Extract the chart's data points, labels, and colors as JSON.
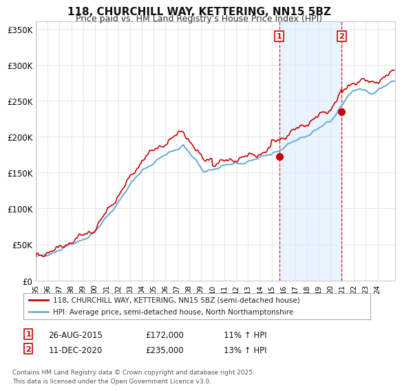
{
  "title": "118, CHURCHILL WAY, KETTERING, NN15 5BZ",
  "subtitle": "Price paid vs. HM Land Registry's House Price Index (HPI)",
  "ylim": [
    0,
    360000
  ],
  "yticks": [
    0,
    50000,
    100000,
    150000,
    200000,
    250000,
    300000,
    350000
  ],
  "ytick_labels": [
    "£0",
    "£50K",
    "£100K",
    "£150K",
    "£200K",
    "£250K",
    "£300K",
    "£350K"
  ],
  "hpi_color": "#6baed6",
  "price_color": "#cc0000",
  "shade_color": "#ddeeff",
  "marker1_date_x": 2015.65,
  "marker1_price": 172000,
  "marker2_date_x": 2020.95,
  "marker2_price": 235000,
  "legend_line1": "118, CHURCHILL WAY, KETTERING, NN15 5BZ (semi-detached house)",
  "legend_line2": "HPI: Average price, semi-detached house, North Northamptonshire",
  "annotation1_label": "1",
  "annotation1_date": "26-AUG-2015",
  "annotation1_price": "£172,000",
  "annotation1_hpi": "11% ↑ HPI",
  "annotation2_label": "2",
  "annotation2_date": "11-DEC-2020",
  "annotation2_price": "£235,000",
  "annotation2_hpi": "13% ↑ HPI",
  "footer": "Contains HM Land Registry data © Crown copyright and database right 2025.\nThis data is licensed under the Open Government Licence v3.0.",
  "background_color": "#ffffff",
  "grid_color": "#cccccc",
  "xlim_start": 1995,
  "xlim_end": 2025.5
}
